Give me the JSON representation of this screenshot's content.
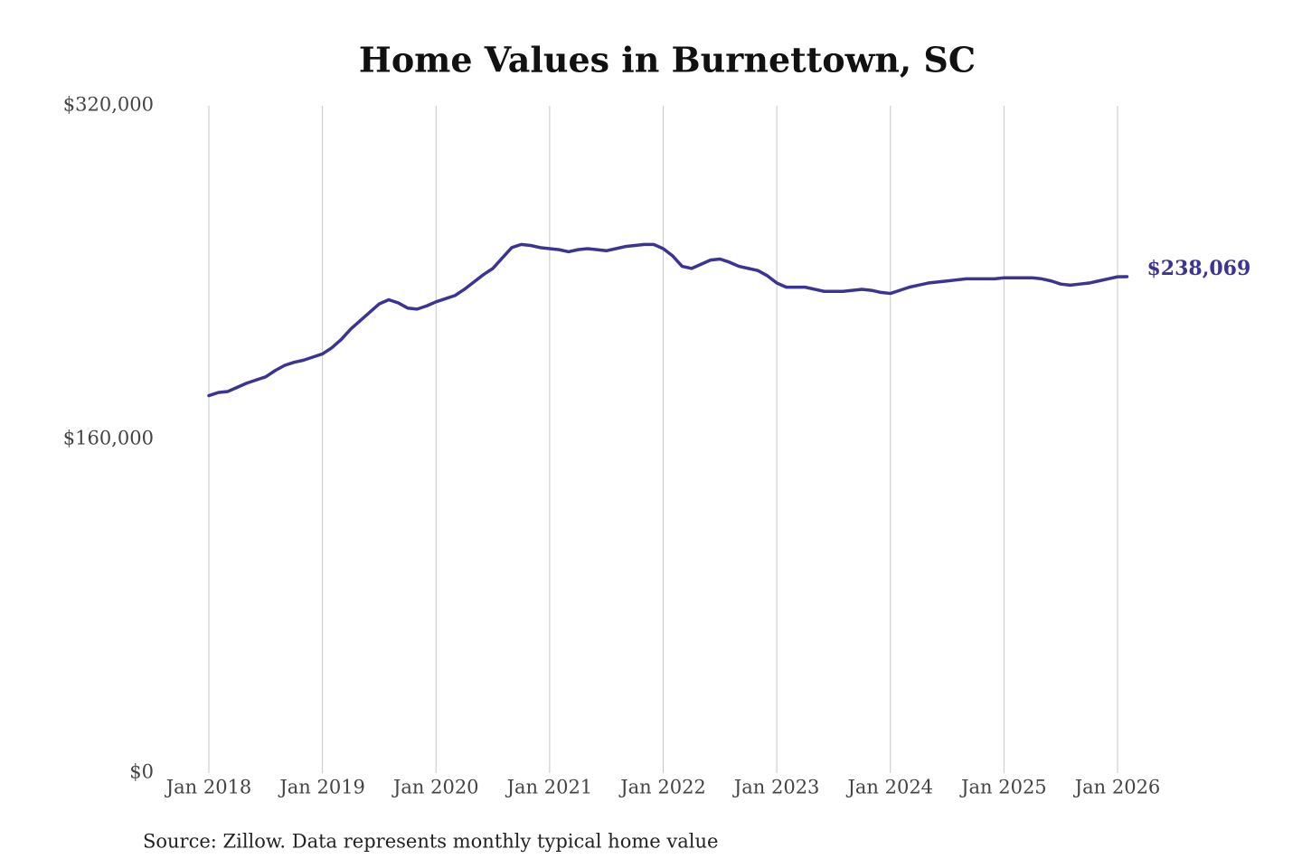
{
  "chart_data": {
    "type": "line",
    "title": "Home Values in Burnettown, SC",
    "source": "Source: Zillow. Data represents monthly typical home value",
    "x": [
      "2018-01",
      "2018-02",
      "2018-03",
      "2018-04",
      "2018-05",
      "2018-06",
      "2018-07",
      "2018-08",
      "2018-09",
      "2018-10",
      "2018-11",
      "2018-12",
      "2019-01",
      "2019-02",
      "2019-03",
      "2019-04",
      "2019-05",
      "2019-06",
      "2019-07",
      "2019-08",
      "2019-09",
      "2019-10",
      "2019-11",
      "2019-12",
      "2020-01",
      "2020-02",
      "2020-03",
      "2020-04",
      "2020-05",
      "2020-06",
      "2020-07",
      "2020-08",
      "2020-09",
      "2020-10",
      "2020-11",
      "2020-12",
      "2021-01",
      "2021-02",
      "2021-03",
      "2021-04",
      "2021-05",
      "2021-06",
      "2021-07",
      "2021-08",
      "2021-09",
      "2021-10",
      "2021-11",
      "2021-12",
      "2022-01",
      "2022-02",
      "2022-03",
      "2022-04",
      "2022-05",
      "2022-06",
      "2022-07",
      "2022-08",
      "2022-09",
      "2022-10",
      "2022-11",
      "2022-12",
      "2023-01",
      "2023-02",
      "2023-03",
      "2023-04",
      "2023-05",
      "2023-06",
      "2023-07",
      "2023-08",
      "2023-09",
      "2023-10",
      "2023-11",
      "2023-12",
      "2024-01",
      "2024-02",
      "2024-03",
      "2024-04",
      "2024-05",
      "2024-06",
      "2024-07",
      "2024-08",
      "2024-09",
      "2024-10",
      "2024-11",
      "2024-12",
      "2025-01",
      "2025-02",
      "2025-03",
      "2025-04",
      "2025-05",
      "2025-06",
      "2025-07",
      "2025-08",
      "2025-09",
      "2025-10",
      "2025-11",
      "2025-12",
      "2026-01",
      "2026-02"
    ],
    "series": [
      {
        "color": "#3b3494",
        "last_value_label": "$238,069",
        "values": [
          181000,
          182500,
          183000,
          185000,
          187000,
          188500,
          190000,
          193000,
          195500,
          197000,
          198000,
          199500,
          201000,
          204000,
          208000,
          213000,
          217000,
          221000,
          225000,
          227000,
          225500,
          223000,
          222500,
          224000,
          226000,
          227500,
          229000,
          232000,
          235500,
          239000,
          242000,
          247000,
          252000,
          253500,
          253000,
          252000,
          251500,
          251000,
          250000,
          251000,
          251500,
          251000,
          250500,
          251500,
          252500,
          253000,
          253500,
          253500,
          251500,
          248000,
          243000,
          242000,
          244000,
          246000,
          246500,
          245000,
          243000,
          242000,
          241000,
          238500,
          235000,
          233000,
          233000,
          233000,
          232000,
          231000,
          231000,
          231000,
          231500,
          232000,
          231500,
          230500,
          230000,
          231500,
          233000,
          234000,
          235000,
          235500,
          236000,
          236500,
          237000,
          237000,
          237000,
          237000,
          237500,
          237500,
          237500,
          237500,
          237000,
          236000,
          234500,
          234000,
          234500,
          235000,
          236000,
          237000,
          238000,
          238069
        ]
      }
    ],
    "ylim": [
      0,
      320000
    ],
    "yticks": [
      {
        "value": 0,
        "label": "$0"
      },
      {
        "value": 160000,
        "label": "$160,000"
      },
      {
        "value": 320000,
        "label": "$320,000"
      }
    ],
    "xticks": [
      {
        "value": "2018-01",
        "label": "Jan 2018"
      },
      {
        "value": "2019-01",
        "label": "Jan 2019"
      },
      {
        "value": "2020-01",
        "label": "Jan 2020"
      },
      {
        "value": "2021-01",
        "label": "Jan 2021"
      },
      {
        "value": "2022-01",
        "label": "Jan 2022"
      },
      {
        "value": "2023-01",
        "label": "Jan 2023"
      },
      {
        "value": "2024-01",
        "label": "Jan 2024"
      },
      {
        "value": "2025-01",
        "label": "Jan 2025"
      },
      {
        "value": "2026-01",
        "label": "Jan 2026"
      }
    ],
    "grid": "x"
  }
}
